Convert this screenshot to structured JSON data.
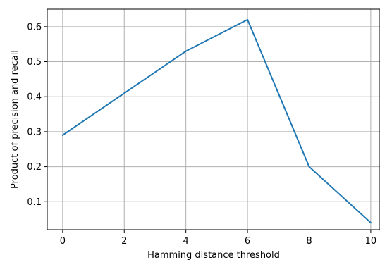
{
  "chart_data": {
    "type": "line",
    "title": "",
    "xlabel": "Hamming distance threshold",
    "ylabel": "Product of precision and recall",
    "x": [
      0,
      2,
      4,
      6,
      8,
      10
    ],
    "series": [
      {
        "values": [
          0.29,
          0.41,
          0.53,
          0.62,
          0.2,
          0.04
        ],
        "color": "#1f77b4"
      }
    ],
    "xlim": [
      -0.5,
      10.3
    ],
    "ylim": [
      0.02,
      0.65
    ],
    "xticks": [
      0,
      2,
      4,
      6,
      8,
      10
    ],
    "xtick_labels": [
      "0",
      "2",
      "4",
      "6",
      "8",
      "10"
    ],
    "yticks": [
      0.1,
      0.2,
      0.3,
      0.4,
      0.5,
      0.6
    ],
    "ytick_labels": [
      "0.1",
      "0.2",
      "0.3",
      "0.4",
      "0.5",
      "0.6"
    ],
    "grid": true,
    "legend": "none"
  }
}
